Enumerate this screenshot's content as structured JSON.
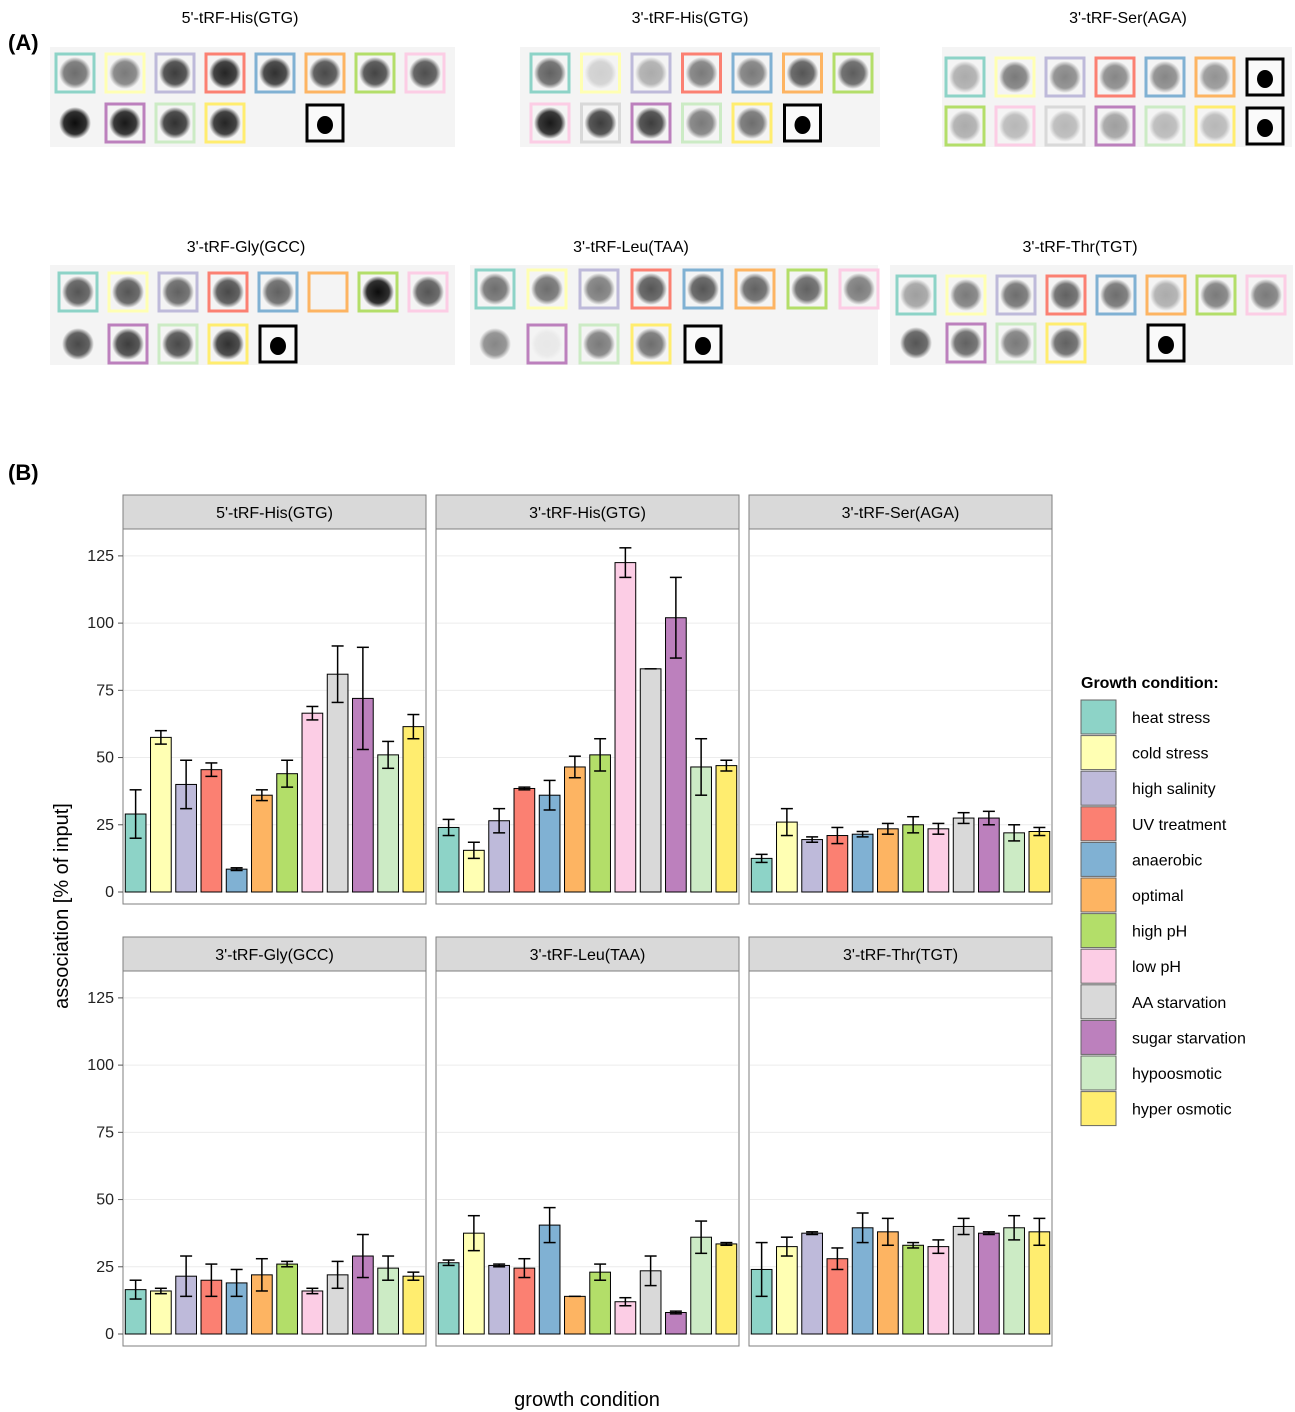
{
  "figure": {
    "panel_a_label": "(A)",
    "panel_b_label": "(B)"
  },
  "blots": [
    {
      "title": "5'-tRF-His(GTG)",
      "row1": [
        0.55,
        0.5,
        0.75,
        0.85,
        0.8,
        0.7,
        0.72,
        0.68
      ],
      "row2": [
        0.95,
        0.9,
        0.8,
        0.85,
        null,
        "marker"
      ],
      "row1_colors": [
        "#8dd3c7",
        "#ffffb3",
        "#bebada",
        "#fb8072",
        "#80b1d3",
        "#fdb462",
        "#b3de69",
        "#fccde5"
      ],
      "row2_colors": [
        "#ffffff00",
        "#bc80bd",
        "#ccebc5",
        "#ffed6f",
        null,
        "#000000"
      ]
    },
    {
      "title": "3'-tRF-His(GTG)",
      "row1": [
        0.6,
        0.15,
        0.3,
        0.5,
        0.5,
        0.65,
        0.62
      ],
      "row2": [
        0.9,
        0.75,
        0.75,
        0.5,
        0.55,
        "marker"
      ],
      "row1_colors": [
        "#8dd3c7",
        "#ffffb3",
        "#bebada",
        "#fb8072",
        "#80b1d3",
        "#fdb462",
        "#b3de69"
      ],
      "row2_colors": [
        "#fccde5",
        "#d9d9d9",
        "#bc80bd",
        "#ccebc5",
        "#ffed6f",
        "#000000"
      ]
    },
    {
      "title": "3'-tRF-Ser(AGA)",
      "row1": [
        0.3,
        0.5,
        0.45,
        0.45,
        0.45,
        0.4,
        "marker"
      ],
      "row2": [
        0.3,
        0.25,
        0.25,
        0.35,
        0.25,
        0.25,
        "marker"
      ],
      "row1_colors": [
        "#8dd3c7",
        "#ffffb3",
        "#bebada",
        "#fb8072",
        "#80b1d3",
        "#fdb462",
        "#000000"
      ],
      "row2_colors": [
        "#b3de69",
        "#fccde5",
        "#d9d9d9",
        "#bc80bd",
        "#ccebc5",
        "#ffed6f",
        "#000000"
      ]
    },
    {
      "title": "3'-tRF-Gly(GCC)",
      "row1": [
        0.65,
        0.65,
        0.6,
        0.7,
        0.6,
        0.0,
        0.95,
        0.65
      ],
      "row2": [
        0.7,
        0.75,
        0.7,
        0.8,
        "marker"
      ],
      "row1_colors": [
        "#8dd3c7",
        "#ffffb3",
        "#bebada",
        "#fb8072",
        "#80b1d3",
        "#fdb462",
        "#b3de69",
        "#fccde5"
      ],
      "row2_colors": [
        "#ffffff00",
        "#bc80bd",
        "#ccebc5",
        "#ffed6f",
        "#000000"
      ]
    },
    {
      "title": "3'-tRF-Leu(TAA)",
      "row1": [
        0.55,
        0.55,
        0.5,
        0.65,
        0.65,
        0.6,
        0.6,
        0.5
      ],
      "row2": [
        0.45,
        0.05,
        0.5,
        0.55,
        "marker"
      ],
      "row1_colors": [
        "#8dd3c7",
        "#ffffb3",
        "#bebada",
        "#fb8072",
        "#80b1d3",
        "#fdb462",
        "#b3de69",
        "#fccde5"
      ],
      "row2_colors": [
        "#ffffff00",
        "#bc80bd",
        "#ccebc5",
        "#ffed6f",
        "#000000"
      ]
    },
    {
      "title": "3'-tRF-Thr(TGT)",
      "row1": [
        0.35,
        0.5,
        0.55,
        0.6,
        0.55,
        0.3,
        0.5,
        0.5
      ],
      "row2": [
        0.65,
        0.6,
        0.5,
        0.6,
        null,
        "marker"
      ],
      "row1_colors": [
        "#8dd3c7",
        "#ffffb3",
        "#bebada",
        "#fb8072",
        "#80b1d3",
        "#fdb462",
        "#b3de69",
        "#fccde5"
      ],
      "row2_colors": [
        "#ffffff00",
        "#bc80bd",
        "#ccebc5",
        "#ffed6f",
        null,
        "#000000"
      ]
    }
  ],
  "chart_data": {
    "type": "bar",
    "xlabel": "growth condition",
    "ylabel": "association [% of input]",
    "ylim": [
      0,
      135
    ],
    "yticks": [
      0,
      25,
      50,
      75,
      100,
      125
    ],
    "grid": true,
    "legend": {
      "title": "Growth condition:",
      "position": "right",
      "entries": [
        "heat stress",
        "cold stress",
        "high salinity",
        "UV treatment",
        "anaerobic",
        "optimal",
        "high pH",
        "low pH",
        "AA starvation",
        "sugar starvation",
        "hypoosmotic",
        "hyper osmotic"
      ],
      "colors": [
        "#8dd3c7",
        "#ffffb3",
        "#bebada",
        "#fb8072",
        "#80b1d3",
        "#fdb462",
        "#b3de69",
        "#fccde5",
        "#d9d9d9",
        "#bc80bd",
        "#ccebc5",
        "#ffed6f"
      ]
    },
    "facets": [
      {
        "title": "5'-tRF-His(GTG)",
        "values": [
          29,
          57.5,
          40,
          45.5,
          8.5,
          36,
          44,
          66.5,
          81,
          72,
          51,
          61.5
        ],
        "errors": [
          9,
          2.5,
          9,
          2.5,
          0.5,
          2,
          5,
          2.5,
          10.5,
          19,
          5,
          4.5
        ]
      },
      {
        "title": "3'-tRF-His(GTG)",
        "values": [
          24,
          15.5,
          26.5,
          38.5,
          36,
          46.5,
          51,
          122.5,
          83,
          102,
          46.5,
          47
        ],
        "errors": [
          3,
          3,
          4.5,
          0.5,
          5.5,
          4,
          6,
          5.5,
          0,
          15,
          10.5,
          2
        ]
      },
      {
        "title": "3'-tRF-Ser(AGA)",
        "values": [
          12.5,
          26,
          19.5,
          21,
          21.5,
          23.5,
          25,
          23.5,
          27.5,
          27.5,
          22,
          22.5
        ],
        "errors": [
          1.5,
          5,
          1,
          3,
          1,
          2,
          3,
          2,
          2,
          2.5,
          3,
          1.5
        ]
      },
      {
        "title": "3'-tRF-Gly(GCC)",
        "values": [
          16.5,
          16,
          21.5,
          20,
          19,
          22,
          26,
          16,
          22,
          29,
          24.5,
          21.5
        ],
        "errors": [
          3.5,
          1,
          7.5,
          6,
          5,
          6,
          1,
          1,
          5,
          8,
          4.5,
          1.5
        ]
      },
      {
        "title": "3'-tRF-Leu(TAA)",
        "values": [
          26.5,
          37.5,
          25.5,
          24.5,
          40.5,
          14,
          23,
          12,
          23.5,
          8,
          36,
          33.5
        ],
        "errors": [
          1,
          6.5,
          0.5,
          3.5,
          6.5,
          0,
          3,
          1.5,
          5.5,
          0.5,
          6,
          0.5
        ]
      },
      {
        "title": "3'-tRF-Thr(TGT)",
        "values": [
          24,
          32.5,
          37.5,
          28,
          39.5,
          38,
          33,
          32.5,
          40,
          37.5,
          39.5,
          38
        ],
        "errors": [
          10,
          3.5,
          0.5,
          4,
          5.5,
          5,
          1,
          2.5,
          3,
          0.5,
          4.5,
          5
        ]
      }
    ]
  }
}
